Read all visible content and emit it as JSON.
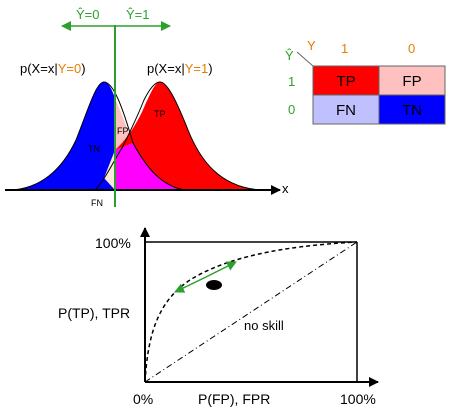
{
  "top_plot": {
    "threshold_labels": {
      "left": "Ŷ=0",
      "right": "Ŷ=1"
    },
    "curve_labels": {
      "class0": {
        "prefix": "p(X=x|",
        "class": "Y=0",
        "suffix": ")"
      },
      "class1": {
        "prefix": "p(X=x|",
        "class": "Y=1",
        "suffix": ")"
      }
    },
    "region_labels": {
      "tn": "TN",
      "fp": "FP",
      "tp": "TP",
      "fn": "FN"
    },
    "axis_label": "x"
  },
  "confusion_matrix": {
    "pred_axis_label": "Ŷ",
    "actual_axis_label": "Y",
    "col_headers": [
      "1",
      "0"
    ],
    "row_headers": [
      "1",
      "0"
    ],
    "cells": [
      [
        "TP",
        "FP"
      ],
      [
        "FN",
        "TN"
      ]
    ]
  },
  "roc": {
    "y_label": "P(TP), TPR",
    "x_label": "P(FP), FPR",
    "y_top_tick": "100%",
    "x_left_tick": "0%",
    "x_right_tick": "100%",
    "diagonal_label": "no skill"
  },
  "colors": {
    "green": "#2ca02c",
    "orange": "#e87d00",
    "tp": "#ff0000",
    "fp": "#ffc0c0",
    "fn": "#c0c0ff",
    "tn": "#0000ff",
    "overlap": "#ff00ff"
  }
}
